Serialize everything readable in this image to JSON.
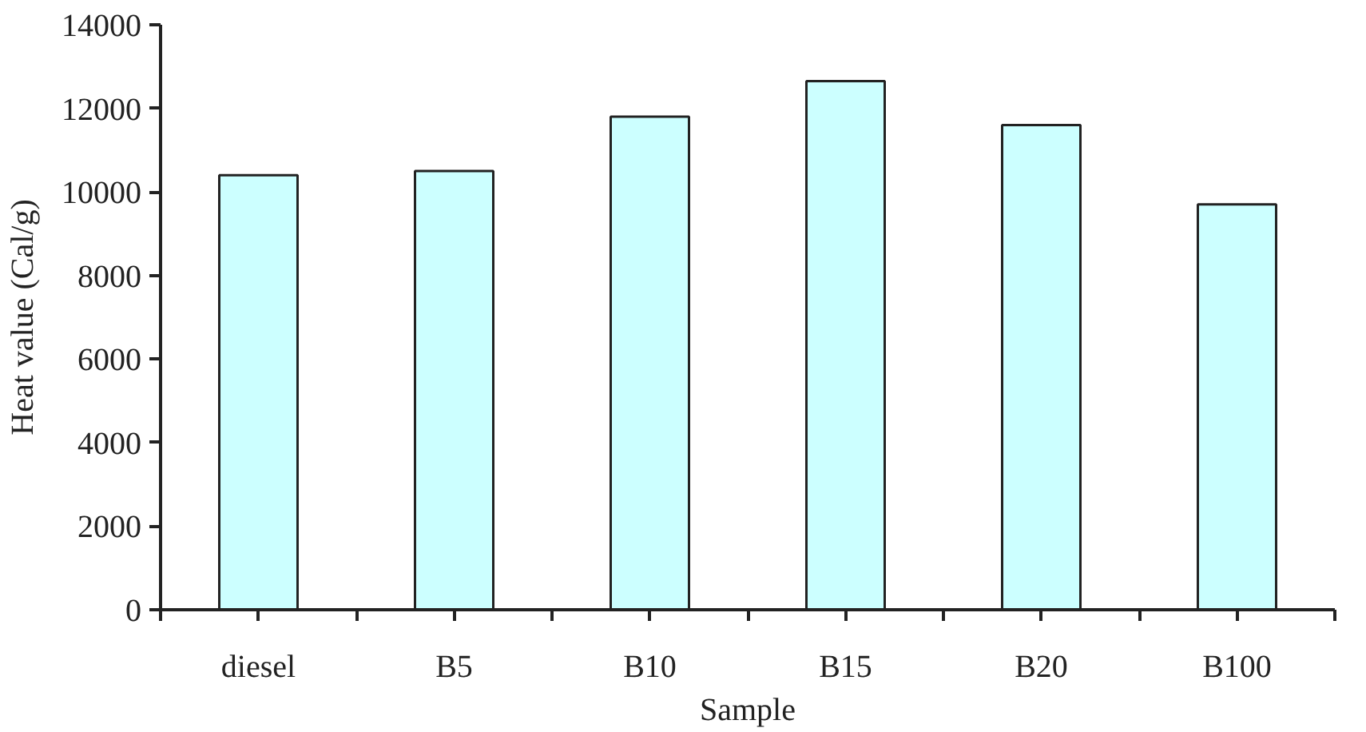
{
  "chart_data": {
    "type": "bar",
    "xlabel": "Sample",
    "ylabel": "Heat value (Cal/g)",
    "categories": [
      "diesel",
      "B5",
      "B10",
      "B15",
      "B20",
      "B100"
    ],
    "values": [
      10400,
      10500,
      11800,
      12650,
      11600,
      9700
    ],
    "color": "#ccffff",
    "ylim": [
      0,
      14000
    ],
    "yticks": [
      0,
      2000,
      4000,
      6000,
      8000,
      10000,
      12000,
      14000
    ],
    "grid": false
  }
}
